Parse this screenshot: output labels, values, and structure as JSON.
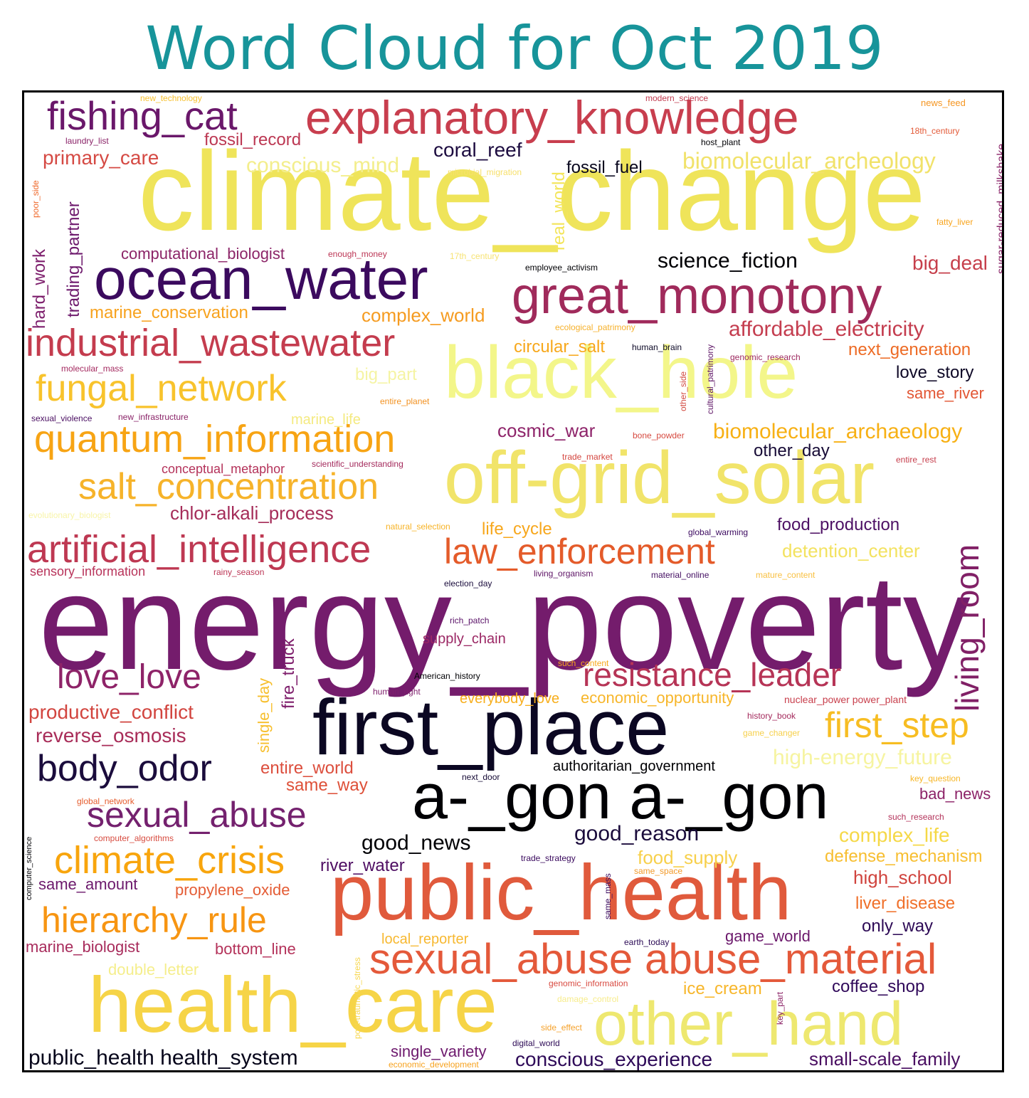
{
  "title": "Word Cloud for Oct 2019",
  "words": [
    {
      "text": "climate_change",
      "color": "#efe45a"
    },
    {
      "text": "energy_poverty",
      "color": "#741c6c"
    },
    {
      "text": "public_health",
      "color": "#e05a3c"
    },
    {
      "text": "health_care",
      "color": "#f6d447"
    },
    {
      "text": "first_place",
      "color": "#0b0722"
    },
    {
      "text": "a-_gon a-_gon",
      "color": "#000004"
    },
    {
      "text": "off-grid_solar",
      "color": "#f1e46a"
    },
    {
      "text": "black_hole",
      "color": "#f3f68a"
    },
    {
      "text": "ocean_water",
      "color": "#3b0a5e"
    },
    {
      "text": "great_monotony",
      "color": "#a02a5b"
    },
    {
      "text": "explanatory_knowledge",
      "color": "#c83e4e"
    },
    {
      "text": "other_hand",
      "color": "#eee870"
    },
    {
      "text": "sexual_abuse abuse_material",
      "color": "#e4593a"
    },
    {
      "text": "industrial_wastewater",
      "color": "#c43c4e"
    },
    {
      "text": "fishing_cat",
      "color": "#6a176a"
    },
    {
      "text": "artificial_intelligence",
      "color": "#be3852"
    },
    {
      "text": "quantum_information",
      "color": "#f7a414"
    },
    {
      "text": "salt_concentration",
      "color": "#f6b32a"
    },
    {
      "text": "fungal_network",
      "color": "#f8c32c"
    },
    {
      "text": "law_enforcement",
      "color": "#e45b2a"
    },
    {
      "text": "resistance_leader",
      "color": "#b63456"
    },
    {
      "text": "climate_crisis",
      "color": "#f8a50d"
    },
    {
      "text": "hierarchy_rule",
      "color": "#f79512"
    },
    {
      "text": "sexual_abuse",
      "color": "#74216e"
    },
    {
      "text": "body_odor",
      "color": "#1b0c3c"
    },
    {
      "text": "love_love",
      "color": "#8e2368"
    },
    {
      "text": "first_step",
      "color": "#f7bd22"
    },
    {
      "text": "living_room",
      "color": "#812066"
    },
    {
      "text": "science_fiction",
      "color": "#000004"
    },
    {
      "text": "coral_reef",
      "color": "#1d0c40"
    },
    {
      "text": "conscious_mind",
      "color": "#f3ee8c"
    },
    {
      "text": "biomolecular_archeology",
      "color": "#f1e26a"
    },
    {
      "text": "biomolecular_archaeology",
      "color": "#f7b014"
    },
    {
      "text": "affordable_electricity",
      "color": "#c43d4f"
    },
    {
      "text": "fossil_record",
      "color": "#bc3853"
    },
    {
      "text": "primary_care",
      "color": "#d54a44"
    },
    {
      "text": "fossil_fuel",
      "color": "#08061d"
    },
    {
      "text": "real_world",
      "color": "#f3e55a"
    },
    {
      "text": "big_deal",
      "color": "#c63f4b"
    },
    {
      "text": "computational_biologist",
      "color": "#8c2568"
    },
    {
      "text": "marine_conservation",
      "color": "#f7a21e"
    },
    {
      "text": "complex_world",
      "color": "#f59b20"
    },
    {
      "text": "trading_partner",
      "color": "#6e1a6d"
    },
    {
      "text": "hard_work",
      "color": "#7d1e6c"
    },
    {
      "text": "circular_salt",
      "color": "#f7a81c"
    },
    {
      "text": "next_generation",
      "color": "#ed6b25"
    },
    {
      "text": "love_story",
      "color": "#0e0826"
    },
    {
      "text": "same_river",
      "color": "#e25634"
    },
    {
      "text": "cosmic_war",
      "color": "#8e246a"
    },
    {
      "text": "other_day",
      "color": "#170b36"
    },
    {
      "text": "marine_life",
      "color": "#f4ea80"
    },
    {
      "text": "big_part",
      "color": "#f5f4a4"
    },
    {
      "text": "chlor-alkali_process",
      "color": "#a52c59"
    },
    {
      "text": "conceptual_metaphor",
      "color": "#b4325a"
    },
    {
      "text": "life_cycle",
      "color": "#f7a71c"
    },
    {
      "text": "food_production",
      "color": "#4d1064"
    },
    {
      "text": "detention_center",
      "color": "#f3e260"
    },
    {
      "text": "sensory_information",
      "color": "#b8335a"
    },
    {
      "text": "productive_conflict",
      "color": "#d2453f"
    },
    {
      "text": "reverse_osmosis",
      "color": "#a82c58"
    },
    {
      "text": "single_day",
      "color": "#f7bf2e"
    },
    {
      "text": "fire_truck",
      "color": "#7e1d6b"
    },
    {
      "text": "supply_chain",
      "color": "#9b2764"
    },
    {
      "text": "entire_world",
      "color": "#dc4e3d"
    },
    {
      "text": "same_way",
      "color": "#de5038"
    },
    {
      "text": "economic_opportunity",
      "color": "#f7b62a"
    },
    {
      "text": "everybody_love",
      "color": "#f7ae1c"
    },
    {
      "text": "high-energy_future",
      "color": "#f6f4a0"
    },
    {
      "text": "authoritarian_government",
      "color": "#000004"
    },
    {
      "text": "good_news",
      "color": "#000004"
    },
    {
      "text": "good_reason",
      "color": "#1b0c3c"
    },
    {
      "text": "complex_life",
      "color": "#f5d847"
    },
    {
      "text": "bad_news",
      "color": "#8c2368"
    },
    {
      "text": "food_supply",
      "color": "#f7d04c"
    },
    {
      "text": "defense_mechanism",
      "color": "#f7be30"
    },
    {
      "text": "high_school",
      "color": "#d0443e"
    },
    {
      "text": "liver_disease",
      "color": "#f0702a"
    },
    {
      "text": "only_way",
      "color": "#2e0b56"
    },
    {
      "text": "river_water",
      "color": "#4e0d62"
    },
    {
      "text": "same_amount",
      "color": "#6c196c"
    },
    {
      "text": "propylene_oxide",
      "color": "#e45d36"
    },
    {
      "text": "marine_biologist",
      "color": "#a82c5c"
    },
    {
      "text": "bottom_line",
      "color": "#b4325a"
    },
    {
      "text": "double_letter",
      "color": "#f5ee8c"
    },
    {
      "text": "local_reporter",
      "color": "#f7b830"
    },
    {
      "text": "game_world",
      "color": "#6c196c"
    },
    {
      "text": "ice_cream",
      "color": "#f7b62a"
    },
    {
      "text": "coffee_shop",
      "color": "#30095a"
    },
    {
      "text": "public_health health_system",
      "color": "#06051a"
    },
    {
      "text": "single_variety",
      "color": "#6e1a6e"
    },
    {
      "text": "conscious_experience",
      "color": "#2e0a58"
    },
    {
      "text": "small-scale_family",
      "color": "#4a0f62"
    },
    {
      "text": "sugar-reduced_milkshake",
      "color": "#8a2468"
    },
    {
      "text": "new_technology",
      "color": "#f7c130"
    },
    {
      "text": "modern_science",
      "color": "#c23c50"
    },
    {
      "text": "news_feed",
      "color": "#f59622"
    },
    {
      "text": "18th_century",
      "color": "#e35a38"
    },
    {
      "text": "laundry_list",
      "color": "#8a2368"
    },
    {
      "text": "host_plant",
      "color": "#000004"
    },
    {
      "text": "microbial_migration",
      "color": "#f7e06c"
    },
    {
      "text": "poor_side",
      "color": "#ef6a2c"
    },
    {
      "text": "fatty_liver",
      "color": "#f8a41c"
    },
    {
      "text": "enough_money",
      "color": "#bc3756"
    },
    {
      "text": "17th_century",
      "color": "#f7e374"
    },
    {
      "text": "employee_activism",
      "color": "#000004"
    },
    {
      "text": "ecological_patrimony",
      "color": "#f6b12c"
    },
    {
      "text": "human_brain",
      "color": "#0c0826"
    },
    {
      "text": "genomic_research",
      "color": "#9e2a60"
    },
    {
      "text": "cultural_patrimony",
      "color": "#5e1566"
    },
    {
      "text": "other_side",
      "color": "#d24a40"
    },
    {
      "text": "molecular_mass",
      "color": "#a42a60"
    },
    {
      "text": "entire_planet",
      "color": "#f29222"
    },
    {
      "text": "sexual_violence",
      "color": "#4a0f62"
    },
    {
      "text": "new_infrastructure",
      "color": "#8a2368"
    },
    {
      "text": "bone_powder",
      "color": "#d64a40"
    },
    {
      "text": "trade_market",
      "color": "#d4453e"
    },
    {
      "text": "entire_rest",
      "color": "#c63e4c"
    },
    {
      "text": "scientific_understanding",
      "color": "#a42a5c"
    },
    {
      "text": "evolutionary_biologist",
      "color": "#f8f4a8"
    },
    {
      "text": "natural_selection",
      "color": "#f7b326"
    },
    {
      "text": "global_warming",
      "color": "#3c0a60"
    },
    {
      "text": "rainy_season",
      "color": "#bc3656"
    },
    {
      "text": "living_organism",
      "color": "#5e1566"
    },
    {
      "text": "material_online",
      "color": "#440f62"
    },
    {
      "text": "mature_content",
      "color": "#f8c042"
    },
    {
      "text": "election_day",
      "color": "#1a0c3c"
    },
    {
      "text": "rich_patch",
      "color": "#5a1268"
    },
    {
      "text": "such_content",
      "color": "#f7a81c"
    },
    {
      "text": "American_history",
      "color": "#000004"
    },
    {
      "text": "human_right",
      "color": "#7e1e6c"
    },
    {
      "text": "nuclear_power power_plant",
      "color": "#c83f4c"
    },
    {
      "text": "history_book",
      "color": "#a42a5c"
    },
    {
      "text": "game_changer",
      "color": "#f6d04c"
    },
    {
      "text": "key_question",
      "color": "#f7b626"
    },
    {
      "text": "next_door",
      "color": "#160b36"
    },
    {
      "text": "such_research",
      "color": "#b3325a"
    },
    {
      "text": "global_network",
      "color": "#e65d2e"
    },
    {
      "text": "computer_algorithms",
      "color": "#d74c40"
    },
    {
      "text": "computer_science",
      "color": "#000004"
    },
    {
      "text": "trade_strategy",
      "color": "#3a0a5e"
    },
    {
      "text": "same_space",
      "color": "#f29a2a"
    },
    {
      "text": "same_mass",
      "color": "#3a0a5e"
    },
    {
      "text": "post-traumatic_stress",
      "color": "#f7d74e"
    },
    {
      "text": "earth_today",
      "color": "#2c0b56"
    },
    {
      "text": "genomic_information",
      "color": "#d84a40"
    },
    {
      "text": "damage_control",
      "color": "#f7ec8c"
    },
    {
      "text": "side_effect",
      "color": "#f5a12a"
    },
    {
      "text": "digital_world",
      "color": "#2d0b56"
    },
    {
      "text": "key_part",
      "color": "#8c2468"
    },
    {
      "text": "economic_development",
      "color": "#f7a21e"
    }
  ]
}
